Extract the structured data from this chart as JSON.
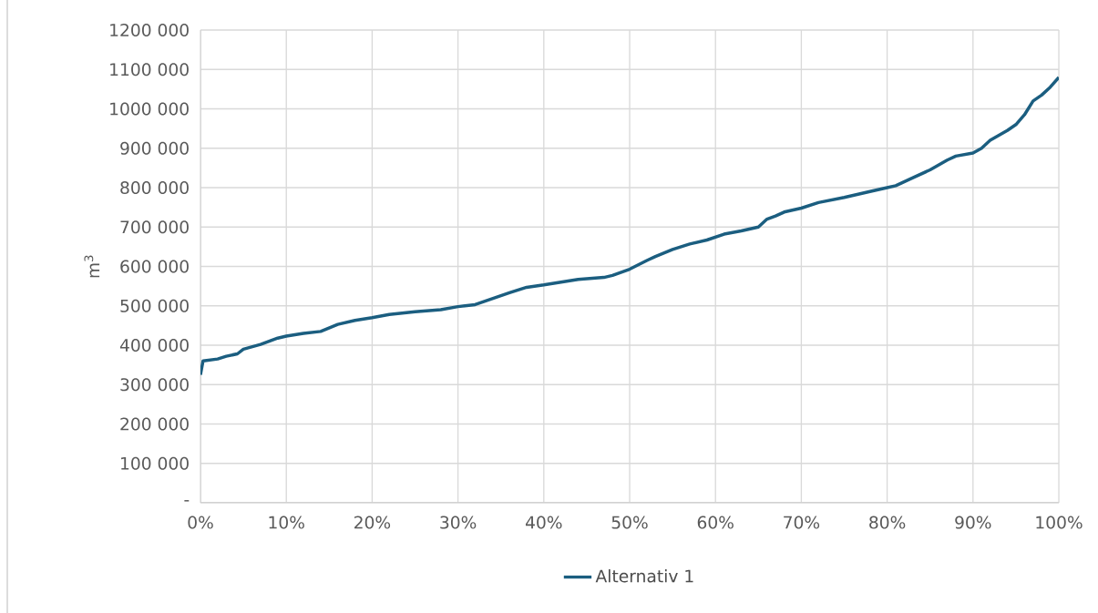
{
  "chart_data": {
    "type": "line",
    "ylabel": "m$^{3}$",
    "x": [
      0,
      0.3,
      2,
      3,
      4.3,
      5,
      7,
      9,
      10,
      12,
      14,
      16,
      18,
      20,
      22,
      25,
      28,
      30,
      32,
      34,
      36,
      38,
      40,
      42,
      44,
      47,
      48,
      50,
      52,
      53,
      55,
      57,
      59,
      61,
      63,
      65,
      66,
      67,
      68,
      70,
      72,
      75,
      78,
      80,
      81,
      83,
      85,
      87,
      88,
      90,
      91,
      92,
      94,
      95,
      96,
      97,
      98,
      99,
      100
    ],
    "series": [
      {
        "name": "Alternativ 1",
        "color": "#1b5e80",
        "values": [
          325000,
          360000,
          365000,
          372000,
          378000,
          390000,
          402000,
          418000,
          423000,
          430000,
          435000,
          453000,
          463000,
          470000,
          478000,
          485000,
          490000,
          498000,
          503000,
          518000,
          533000,
          547000,
          553000,
          560000,
          567000,
          572000,
          577000,
          593000,
          615000,
          625000,
          643000,
          657000,
          667000,
          682000,
          690000,
          700000,
          720000,
          728000,
          738000,
          748000,
          762000,
          775000,
          790000,
          800000,
          805000,
          825000,
          845000,
          870000,
          880000,
          888000,
          900000,
          920000,
          945000,
          960000,
          985000,
          1020000,
          1035000,
          1055000,
          1080000
        ]
      }
    ],
    "xlim": [
      0,
      100
    ],
    "xticks": [
      {
        "value": 0,
        "label": "0%"
      },
      {
        "value": 10,
        "label": "10%"
      },
      {
        "value": 20,
        "label": "20%"
      },
      {
        "value": 30,
        "label": "30%"
      },
      {
        "value": 40,
        "label": "40%"
      },
      {
        "value": 50,
        "label": "50%"
      },
      {
        "value": 60,
        "label": "60%"
      },
      {
        "value": 70,
        "label": "70%"
      },
      {
        "value": 80,
        "label": "80%"
      },
      {
        "value": 90,
        "label": "90%"
      },
      {
        "value": 100,
        "label": "100%"
      }
    ],
    "ylim": [
      0,
      1200000
    ],
    "yticks": [
      {
        "value": 0,
        "label": "-"
      },
      {
        "value": 100000,
        "label": "100 000"
      },
      {
        "value": 200000,
        "label": "200 000"
      },
      {
        "value": 300000,
        "label": "300 000"
      },
      {
        "value": 400000,
        "label": "400 000"
      },
      {
        "value": 500000,
        "label": "500 000"
      },
      {
        "value": 600000,
        "label": "600 000"
      },
      {
        "value": 700000,
        "label": "700 000"
      },
      {
        "value": 800000,
        "label": "800 000"
      },
      {
        "value": 900000,
        "label": "900 000"
      },
      {
        "value": 1000000,
        "label": "1000 000"
      },
      {
        "value": 1100000,
        "label": "1100 000"
      },
      {
        "value": 1200000,
        "label": "1200 000"
      }
    ],
    "grid": true,
    "legend": "bottom",
    "marker": "none",
    "line_style": "solid"
  }
}
